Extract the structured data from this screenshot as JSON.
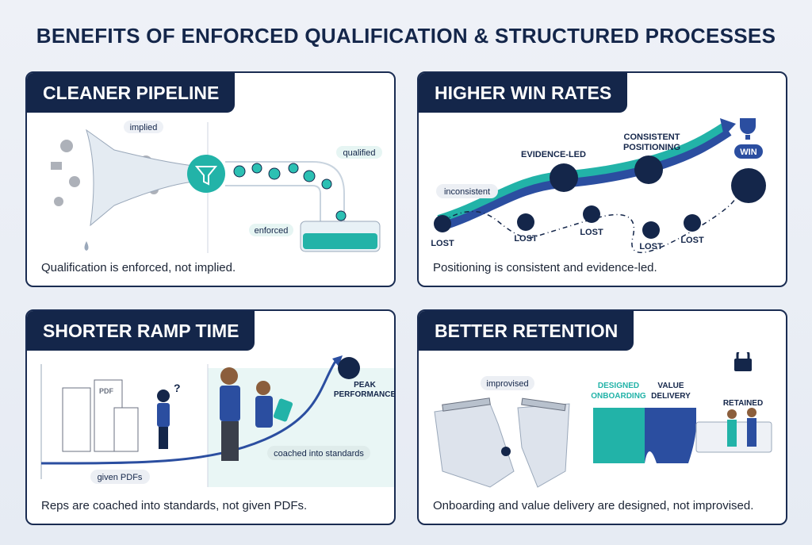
{
  "title": "BENEFITS OF ENFORCED QUALIFICATION & STRUCTURED PROCESSES",
  "panels": [
    {
      "heading": "CLEANER PIPELINE",
      "caption": "Qualification is enforced, not implied.",
      "labels": {
        "implied": "implied",
        "qualified": "qualified",
        "enforced": "enforced"
      },
      "icons": [
        "funnel-icon"
      ]
    },
    {
      "heading": "HIGHER WIN RATES",
      "caption": "Positioning is consistent and evidence-led.",
      "labels": {
        "inconsistent": "inconsistent",
        "evidence": "EVIDENCE-LED",
        "consistent1": "CONSISTENT",
        "consistent2": "POSITIONING",
        "win": "WIN",
        "lost": "LOST"
      },
      "icons": [
        "trophy-icon",
        "chart-up-icon",
        "award-ribbon-icon",
        "handshake-icon",
        "trend-down-icon"
      ]
    },
    {
      "heading": "SHORTER RAMP TIME",
      "caption": "Reps are coached into standards, not given PDFs.",
      "labels": {
        "pdf": "PDF",
        "peak1": "PEAK",
        "peak2": "PERFORMANCE",
        "coached": "coached into standards",
        "given": "given PDFs",
        "question": "?"
      },
      "icons": [
        "pdf-stack-icon",
        "peak-performance-icon"
      ]
    },
    {
      "heading": "BETTER RETENTION",
      "caption": "Onboarding and value delivery are designed, not improvised.",
      "labels": {
        "improvised": "improvised",
        "designed1": "DESIGNED",
        "designed2": "ONBOARDING",
        "value1": "VALUE",
        "value2": "DELIVERY",
        "retained": "RETAINED"
      },
      "icons": [
        "lock-icon",
        "puzzle-bridge-icon",
        "broken-bridge-icon"
      ]
    }
  ],
  "colors": {
    "navy": "#14264a",
    "teal": "#22b3a8",
    "blue": "#2b4ea0"
  }
}
